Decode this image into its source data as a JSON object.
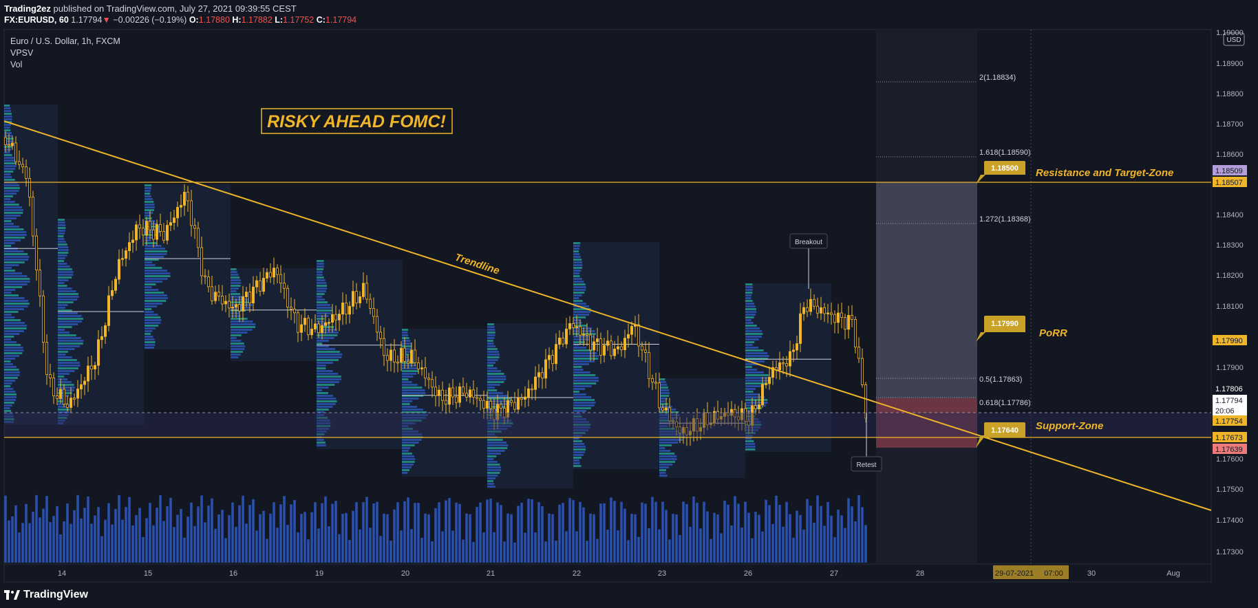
{
  "header": {
    "publisher": "Trading2ez",
    "published_text": "published on TradingView.com, July 27, 2021 09:39:55 CEST",
    "symbol": "FX:EURUSD, 60",
    "last": "1.17794",
    "change_arrow": "▼",
    "change": "−0.00226 (−0.19%)",
    "o_label": "O:",
    "o": "1.17880",
    "h_label": "H:",
    "h": "1.17882",
    "l_label": "L:",
    "l": "1.17752",
    "c_label": "C:",
    "c": "1.17794"
  },
  "legend": {
    "title": "Euro / U.S. Dollar, 1h, FXCM",
    "indicator1": "VPSV",
    "indicator2": "Vol"
  },
  "annotations": {
    "headline": "RISKY AHEAD FOMC!",
    "trendline": "Trendline",
    "resistance": "Resistance and Target-Zone",
    "porr": "PoRR",
    "support": "Support-Zone",
    "breakout": "Breakout",
    "retest": "Retest",
    "callout_resistance": "1.18500",
    "callout_porr": "1.17990",
    "callout_support": "1.17640"
  },
  "fib": {
    "f2": "2(1.18834)",
    "f1618": "1.618(1.18590)",
    "f1272": "1.272(1.18368)",
    "f05": "0.5(1.17863)",
    "f0618": "0.618(1.17786)"
  },
  "price_axis": {
    "currency": "USD",
    "ticks": [
      "1.19000",
      "1.18900",
      "1.18800",
      "1.18700",
      "1.18600",
      "1.18400",
      "1.18300",
      "1.18200",
      "1.18100",
      "1.17900",
      "1.17600",
      "1.17500",
      "1.17400",
      "1.17300"
    ],
    "tags": [
      {
        "text": "1.18509",
        "bg": "#b39ddb",
        "fg": "#131722"
      },
      {
        "text": "1.18507",
        "bg": "#f0b528",
        "fg": "#131722"
      },
      {
        "text": "1.17990",
        "bg": "#f0b528",
        "fg": "#131722"
      },
      {
        "text": "1.17806",
        "bg": "#131722",
        "fg": "#ffffff"
      },
      {
        "text": "1.17794",
        "bg": "#ffffff",
        "fg": "#131722"
      },
      {
        "text": "20:06",
        "bg": "#ffffff",
        "fg": "#131722"
      },
      {
        "text": "1.17754",
        "bg": "#f0b528",
        "fg": "#131722"
      },
      {
        "text": "1.17673",
        "bg": "#f0b528",
        "fg": "#131722"
      },
      {
        "text": "1.17639",
        "bg": "#ef7a7a",
        "fg": "#131722"
      }
    ]
  },
  "time_axis": {
    "ticks": [
      "14",
      "15",
      "16",
      "19",
      "20",
      "21",
      "22",
      "23",
      "26",
      "27",
      "28",
      "30",
      "Aug"
    ],
    "crosshair_date": "29-07-2021",
    "crosshair_time": "07:00"
  },
  "footer": {
    "brand": "TradingView"
  },
  "colors": {
    "background": "#131722",
    "candle": "#f0b528",
    "volume": "#2d5bc4",
    "annotation": "#f0b528",
    "profit_zone": "#5d6074",
    "loss_zone": "#a14454"
  }
}
